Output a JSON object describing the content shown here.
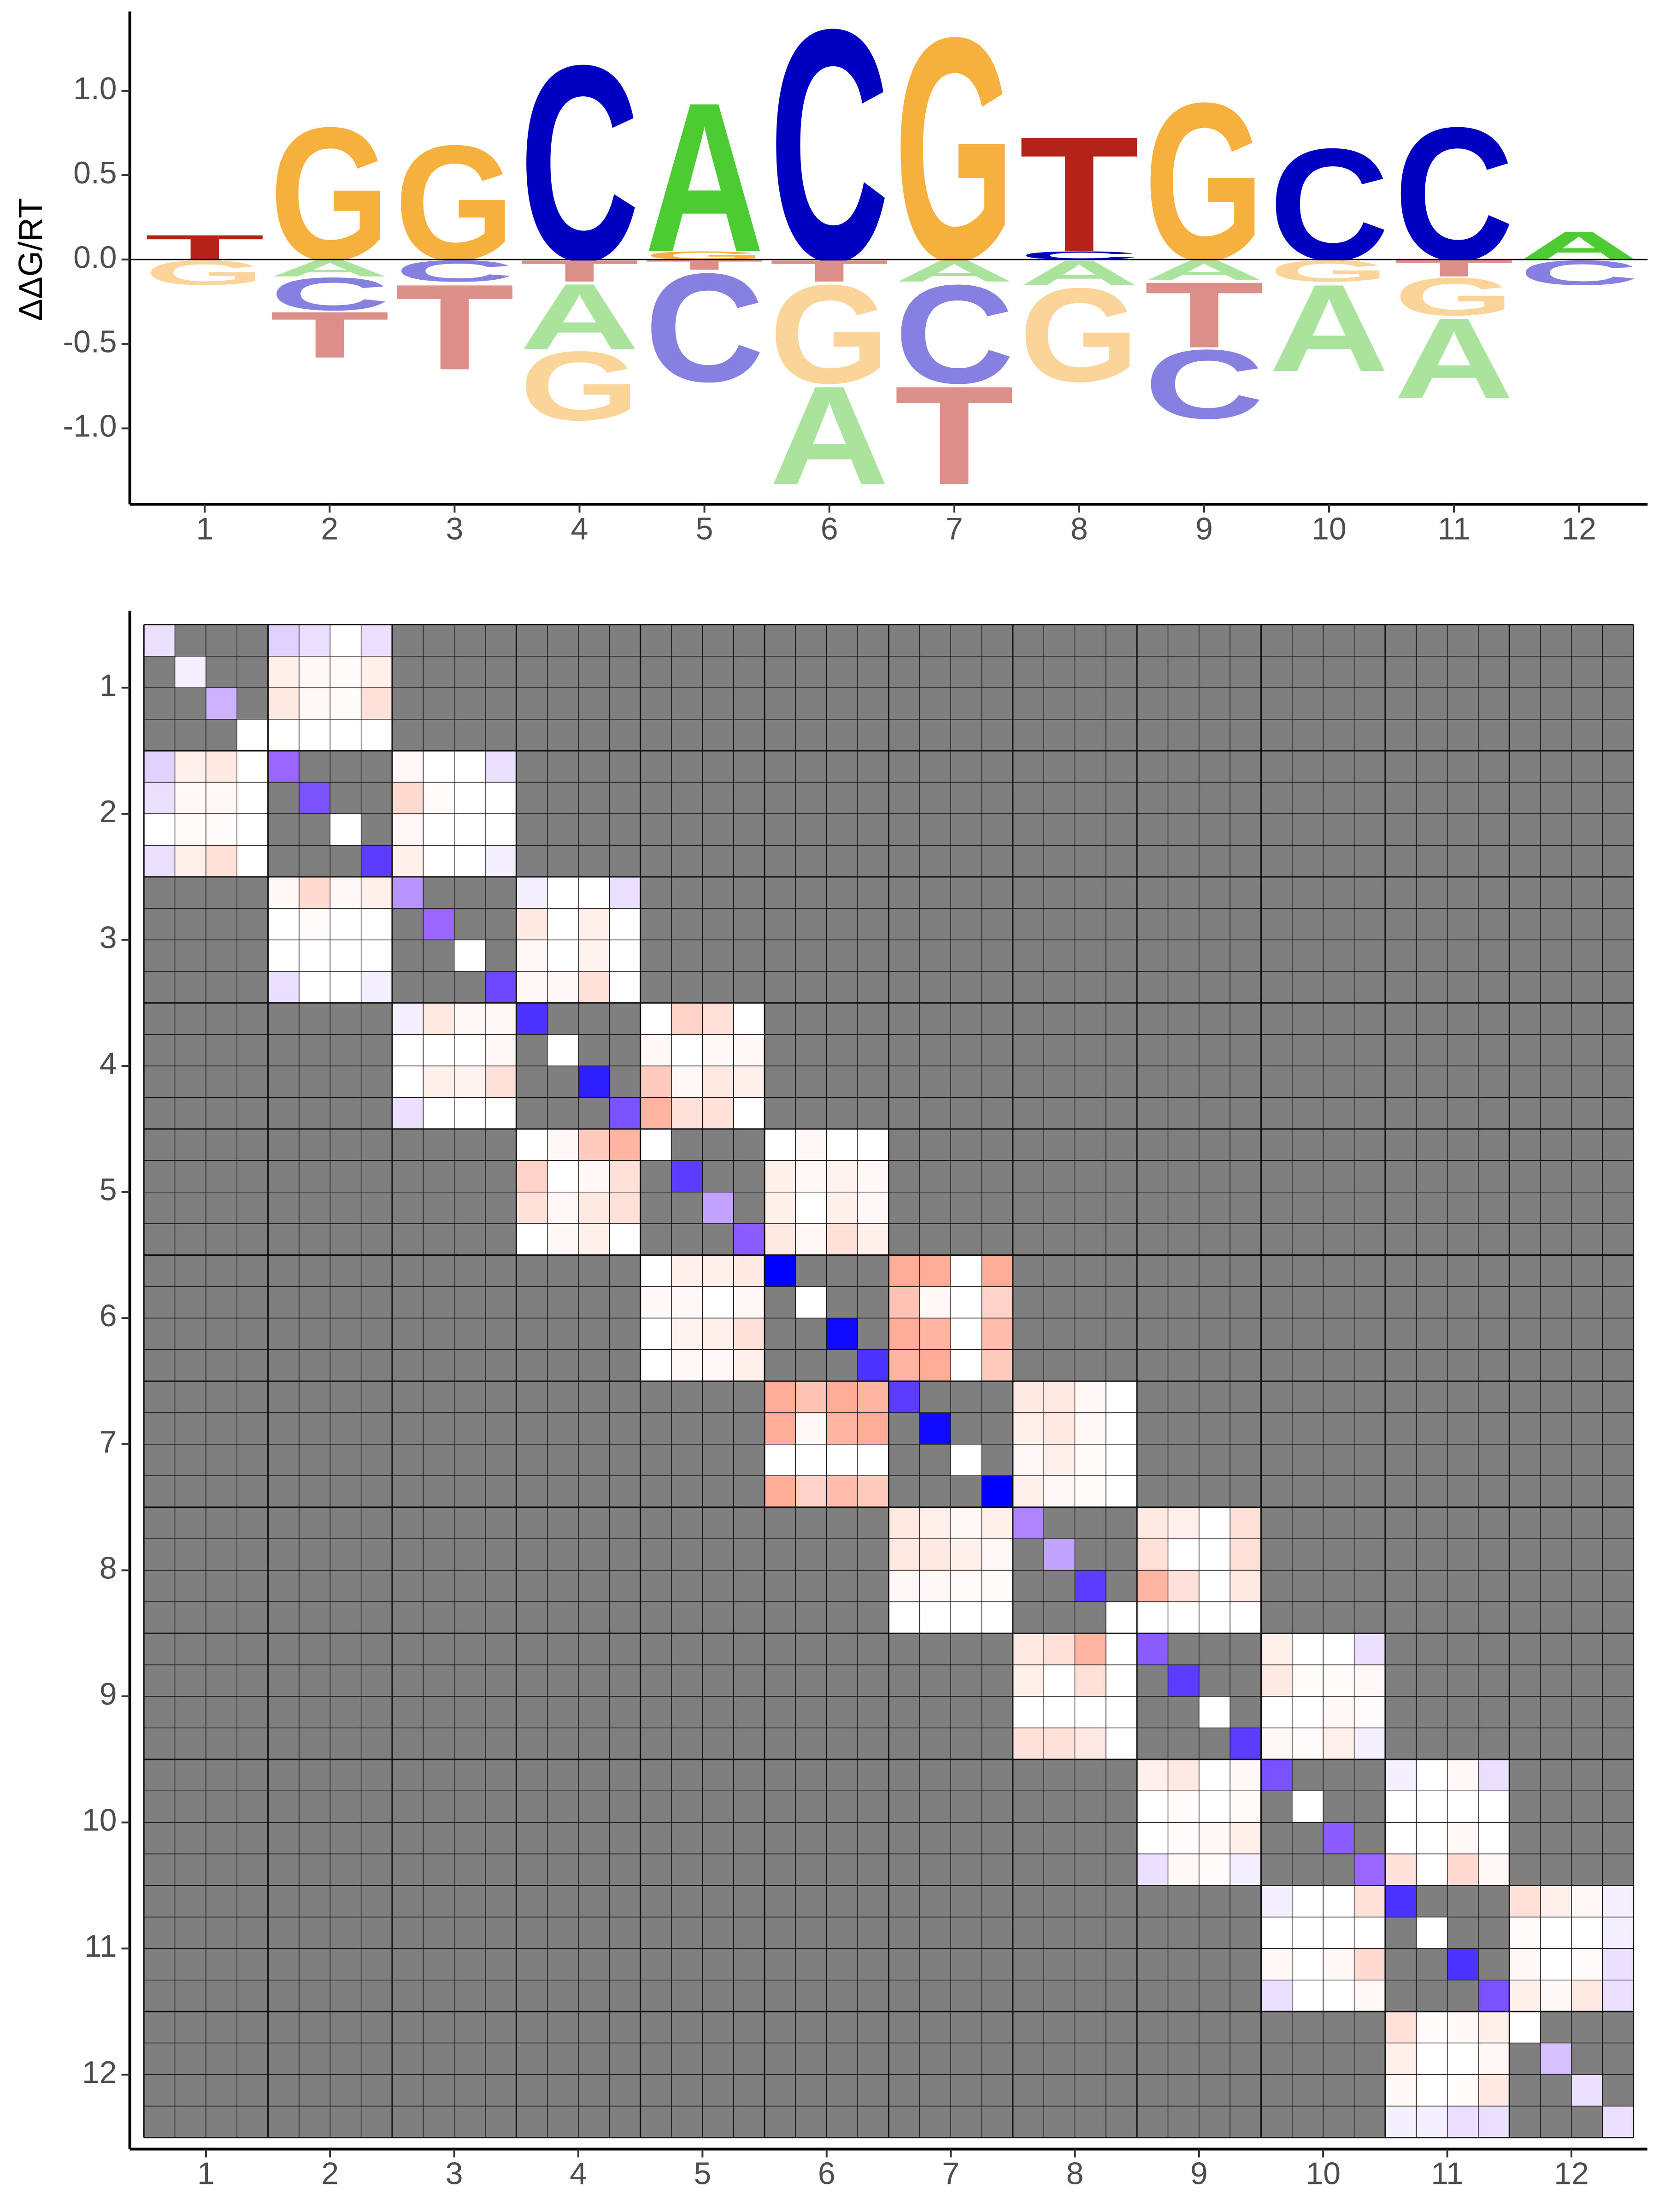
{
  "chart_data": [
    {
      "type": "logo",
      "ylabel": "ΔΔG/RT",
      "x": [
        1,
        2,
        3,
        4,
        5,
        6,
        7,
        8,
        9,
        10,
        11,
        12
      ],
      "xlim": [
        0.4,
        12.55
      ],
      "xticks": [
        1,
        2,
        3,
        4,
        5,
        6,
        7,
        8,
        9,
        10,
        11,
        12
      ],
      "ylim": [
        -1.45,
        1.47
      ],
      "yticks": [
        {
          "value": -1,
          "label": "-1.0"
        },
        {
          "value": -0.5,
          "label": "-0.5"
        },
        {
          "value": 0,
          "label": "0.0"
        },
        {
          "value": 0.5,
          "label": "0.5"
        },
        {
          "value": 1,
          "label": "1.0"
        }
      ],
      "colors": {
        "A": "#4ccb33",
        "C": "#0000c0",
        "G": "#f5b03e",
        "T": "#b3231a"
      },
      "negative_colors": {
        "A": "#a9e39c",
        "C": "#8680e0",
        "G": "#fbd49a",
        "T": "#dc8f88"
      },
      "stacks": [
        {
          "above": [
            {
              "letter": "T",
              "value": 0.15
            }
          ],
          "below": [
            {
              "letter": "G",
              "value": -0.15
            }
          ]
        },
        {
          "above": [
            {
              "letter": "G",
              "value": 0.81
            }
          ],
          "below": [
            {
              "letter": "A",
              "value": -0.1
            },
            {
              "letter": "C",
              "value": -0.2
            },
            {
              "letter": "T",
              "value": -0.28
            }
          ]
        },
        {
          "above": [
            {
              "letter": "G",
              "value": 0.7
            }
          ],
          "below": [
            {
              "letter": "C",
              "value": -0.13
            },
            {
              "letter": "T",
              "value": -0.52
            }
          ]
        },
        {
          "above": [
            {
              "letter": "C",
              "value": 1.19
            }
          ],
          "below": [
            {
              "letter": "T",
              "value": -0.13
            },
            {
              "letter": "A",
              "value": -0.4
            },
            {
              "letter": "G",
              "value": -0.42
            }
          ]
        },
        {
          "above": [
            {
              "letter": "G",
              "value": 0.05
            },
            {
              "letter": "A",
              "value": 0.91
            }
          ],
          "below": [
            {
              "letter": "T",
              "value": -0.06
            },
            {
              "letter": "C",
              "value": -0.66
            }
          ]
        },
        {
          "above": [
            {
              "letter": "C",
              "value": 1.41
            }
          ],
          "below": [
            {
              "letter": "T",
              "value": -0.13
            },
            {
              "letter": "G",
              "value": -0.6
            },
            {
              "letter": "A",
              "value": -0.6
            }
          ]
        },
        {
          "above": [
            {
              "letter": "G",
              "value": 1.36
            }
          ],
          "below": [
            {
              "letter": "A",
              "value": -0.13
            },
            {
              "letter": "C",
              "value": -0.6
            },
            {
              "letter": "T",
              "value": -0.6
            }
          ]
        },
        {
          "above": [
            {
              "letter": "C",
              "value": 0.05
            },
            {
              "letter": "T",
              "value": 0.7
            }
          ],
          "below": [
            {
              "letter": "A",
              "value": -0.15
            },
            {
              "letter": "G",
              "value": -0.57
            }
          ]
        },
        {
          "above": [
            {
              "letter": "G",
              "value": 0.96
            }
          ],
          "below": [
            {
              "letter": "A",
              "value": -0.12
            },
            {
              "letter": "T",
              "value": -0.4
            },
            {
              "letter": "C",
              "value": -0.42
            }
          ]
        },
        {
          "above": [
            {
              "letter": "C",
              "value": 0.68
            }
          ],
          "below": [
            {
              "letter": "G",
              "value": -0.13
            },
            {
              "letter": "A",
              "value": -0.53
            }
          ]
        },
        {
          "above": [
            {
              "letter": "C",
              "value": 0.81
            }
          ],
          "below": [
            {
              "letter": "T",
              "value": -0.1
            },
            {
              "letter": "G",
              "value": -0.23
            },
            {
              "letter": "A",
              "value": -0.49
            }
          ]
        },
        {
          "above": [
            {
              "letter": "A",
              "value": 0.17
            }
          ],
          "below": [
            {
              "letter": "C",
              "value": -0.15
            }
          ]
        }
      ]
    },
    {
      "type": "heatmap",
      "xlim": [
        0.5,
        12.5
      ],
      "ylim": [
        0.5,
        12.5
      ],
      "xticks": [
        1,
        2,
        3,
        4,
        5,
        6,
        7,
        8,
        9,
        10,
        11,
        12
      ],
      "yticks": [
        1,
        2,
        3,
        4,
        5,
        6,
        7,
        8,
        9,
        10,
        11,
        12
      ],
      "missing_color": "#7f7f7f",
      "color_stops": [
        [
          -1,
          "#0000ff"
        ],
        [
          -0.5,
          "#9a66ff"
        ],
        [
          0,
          "#ffffff"
        ],
        [
          1,
          "#ff6a45"
        ]
      ],
      "diagonal": [
        -0.1,
        -0.05,
        -0.25,
        0,
        -0.5,
        -0.6,
        0,
        -0.7,
        -0.35,
        -0.5,
        0,
        -0.65,
        -0.75,
        0,
        -0.85,
        -0.6,
        0,
        -0.7,
        -0.3,
        -0.55,
        -1,
        0,
        -0.95,
        -0.75,
        -0.7,
        -0.95,
        0,
        -1,
        -0.4,
        -0.3,
        -0.7,
        0,
        -0.55,
        -0.7,
        0,
        -0.7,
        -0.6,
        0,
        -0.55,
        -0.5,
        -0.75,
        0,
        -0.75,
        -0.6,
        0,
        -0.2,
        -0.1,
        -0.1
      ],
      "blocks": [
        [
          [
            -0.15,
            -0.1,
            0,
            -0.1
          ],
          [
            0.1,
            0.05,
            0.02,
            0.1
          ],
          [
            0.15,
            0.05,
            0.02,
            0.2
          ],
          [
            0,
            0,
            0,
            0
          ]
        ],
        [
          [
            0.05,
            0,
            0,
            -0.1
          ],
          [
            0.25,
            0.02,
            0,
            0
          ],
          [
            0.05,
            0,
            0,
            0
          ],
          [
            0.1,
            0,
            0,
            -0.05
          ]
        ],
        [
          [
            -0.05,
            0,
            0,
            -0.1
          ],
          [
            0.15,
            0,
            0.1,
            0
          ],
          [
            0.05,
            0,
            0.08,
            0
          ],
          [
            0.05,
            0.05,
            0.2,
            0
          ]
        ],
        [
          [
            0,
            0.3,
            0.2,
            0
          ],
          [
            0.05,
            0,
            0.05,
            0.05
          ],
          [
            0.35,
            0.05,
            0.15,
            0.1
          ],
          [
            0.5,
            0.2,
            0.2,
            0
          ]
        ],
        [
          [
            0,
            0.05,
            0,
            0
          ],
          [
            0.1,
            0.05,
            0.08,
            0.05
          ],
          [
            0.1,
            0,
            0.1,
            0.05
          ],
          [
            0.15,
            0.05,
            0.2,
            0.1
          ]
        ],
        [
          [
            0.55,
            0.55,
            0,
            0.55
          ],
          [
            0.4,
            0.05,
            0,
            0.3
          ],
          [
            0.55,
            0.5,
            0,
            0.45
          ],
          [
            0.5,
            0.55,
            0,
            0.35
          ]
        ],
        [
          [
            0.15,
            0.15,
            0.05,
            0
          ],
          [
            0.1,
            0.15,
            0.05,
            0
          ],
          [
            0.05,
            0.1,
            0.02,
            0
          ],
          [
            0.1,
            0.05,
            0.02,
            0
          ]
        ],
        [
          [
            0.15,
            0.1,
            0,
            0.2
          ],
          [
            0.2,
            0,
            0,
            0.2
          ],
          [
            0.5,
            0.2,
            0,
            0.15
          ],
          [
            0,
            0,
            0,
            0
          ]
        ],
        [
          [
            0.1,
            0,
            0,
            -0.1
          ],
          [
            0.15,
            0.02,
            0.02,
            0.05
          ],
          [
            0,
            0,
            0.05,
            0.02
          ],
          [
            0.05,
            0.02,
            0.1,
            -0.05
          ]
        ],
        [
          [
            -0.05,
            0,
            0.05,
            -0.1
          ],
          [
            0,
            0,
            0,
            0
          ],
          [
            0,
            0,
            0.05,
            0
          ],
          [
            0.2,
            0,
            0.25,
            0.05
          ]
        ],
        [
          [
            0.2,
            0.1,
            0.05,
            -0.05
          ],
          [
            0.02,
            0,
            0,
            -0.05
          ],
          [
            0.05,
            0,
            0.02,
            -0.1
          ],
          [
            0.1,
            0.05,
            0.15,
            -0.1
          ]
        ]
      ]
    }
  ]
}
